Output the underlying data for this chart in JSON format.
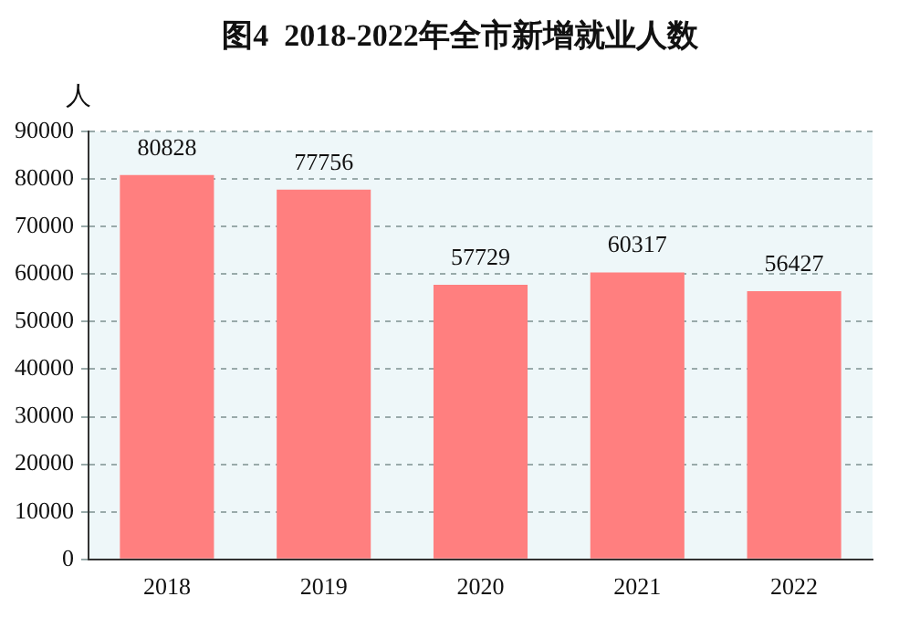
{
  "chart_data": {
    "type": "bar",
    "title": "图4  2018-2022年全市新增就业人数",
    "ylabel": "人",
    "categories": [
      "2018",
      "2019",
      "2020",
      "2021",
      "2022"
    ],
    "values": [
      80828,
      77756,
      57729,
      60317,
      56427
    ],
    "color": "#ff7f7f",
    "ylim": [
      0,
      90000
    ],
    "yticks": [
      0,
      10000,
      20000,
      30000,
      40000,
      50000,
      60000,
      70000,
      80000,
      90000
    ],
    "grid": "y",
    "data_labels": true
  }
}
